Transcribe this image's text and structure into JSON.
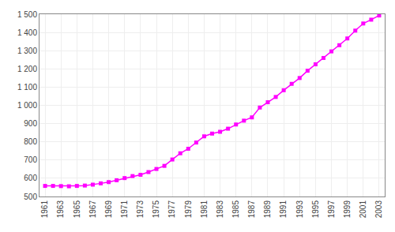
{
  "chart_data": {
    "type": "line",
    "x": [
      1961,
      1962,
      1963,
      1964,
      1965,
      1966,
      1967,
      1968,
      1969,
      1970,
      1971,
      1972,
      1973,
      1974,
      1975,
      1976,
      1977,
      1978,
      1979,
      1980,
      1981,
      1982,
      1983,
      1984,
      1985,
      1986,
      1987,
      1988,
      1989,
      1990,
      1991,
      1992,
      1993,
      1994,
      1995,
      1996,
      1997,
      1998,
      1999,
      2000,
      2001,
      2002,
      2003
    ],
    "values": [
      558,
      558,
      557,
      556,
      558,
      560,
      565,
      572,
      579,
      589,
      601,
      612,
      619,
      634,
      651,
      668,
      703,
      737,
      762,
      796,
      830,
      845,
      855,
      872,
      895,
      916,
      934,
      988,
      1017,
      1046,
      1083,
      1118,
      1150,
      1190,
      1225,
      1260,
      1296,
      1330,
      1367,
      1410,
      1449,
      1470,
      1493
    ],
    "color": "#ff00ff",
    "marker": "square",
    "xlim": [
      1960.3,
      2003.7
    ],
    "xticks": [
      1961,
      1963,
      1965,
      1967,
      1969,
      1971,
      1973,
      1975,
      1977,
      1979,
      1981,
      1983,
      1985,
      1987,
      1989,
      1991,
      1993,
      1995,
      1997,
      1999,
      2001,
      2003
    ],
    "ylim": [
      500,
      1500
    ],
    "yticks": [
      500,
      600,
      700,
      800,
      900,
      {
        "value": 1000,
        "label": "1 000"
      },
      {
        "value": 1100,
        "label": "1 100"
      },
      {
        "value": 1200,
        "label": "1 200"
      },
      {
        "value": 1300,
        "label": "1 300"
      },
      {
        "value": 1400,
        "label": "1 400"
      },
      {
        "value": 1500,
        "label": "1 500"
      }
    ],
    "grid": true
  }
}
